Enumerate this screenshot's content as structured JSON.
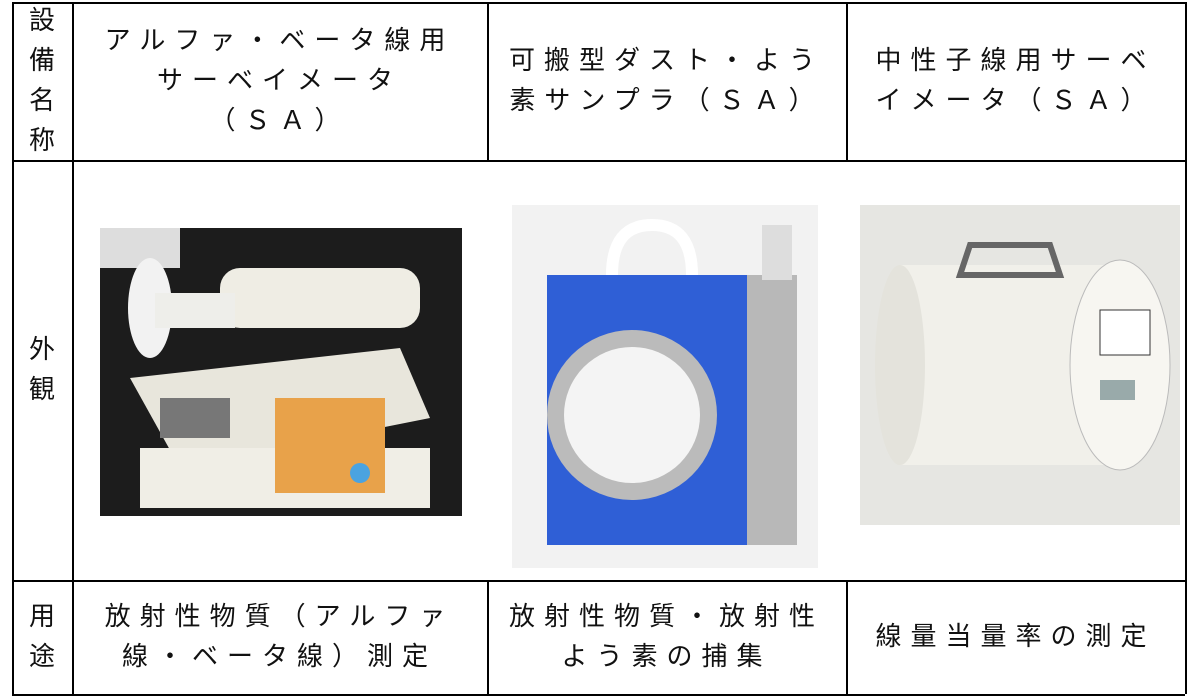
{
  "table": {
    "rows": [
      [
        [
          "設",
          "備",
          "名",
          "称"
        ],
        [
          "アルファ・ベータ線用",
          "サーベイメータ",
          "（ＳＡ）"
        ],
        [
          "可搬型ダスト・よう",
          "素サンプラ（ＳＡ）"
        ],
        [
          "中性子線用サーベ",
          "イメータ（ＳＡ）"
        ]
      ],
      [
        [
          "外",
          "観"
        ]
      ],
      [
        [
          "用",
          "途"
        ],
        [
          "放射性物質（アルファ",
          "線・ベータ線）測定"
        ],
        [
          "放射性物質・放射性",
          "よう素の捕集"
        ],
        [
          "線量当量率の測定"
        ]
      ]
    ]
  }
}
